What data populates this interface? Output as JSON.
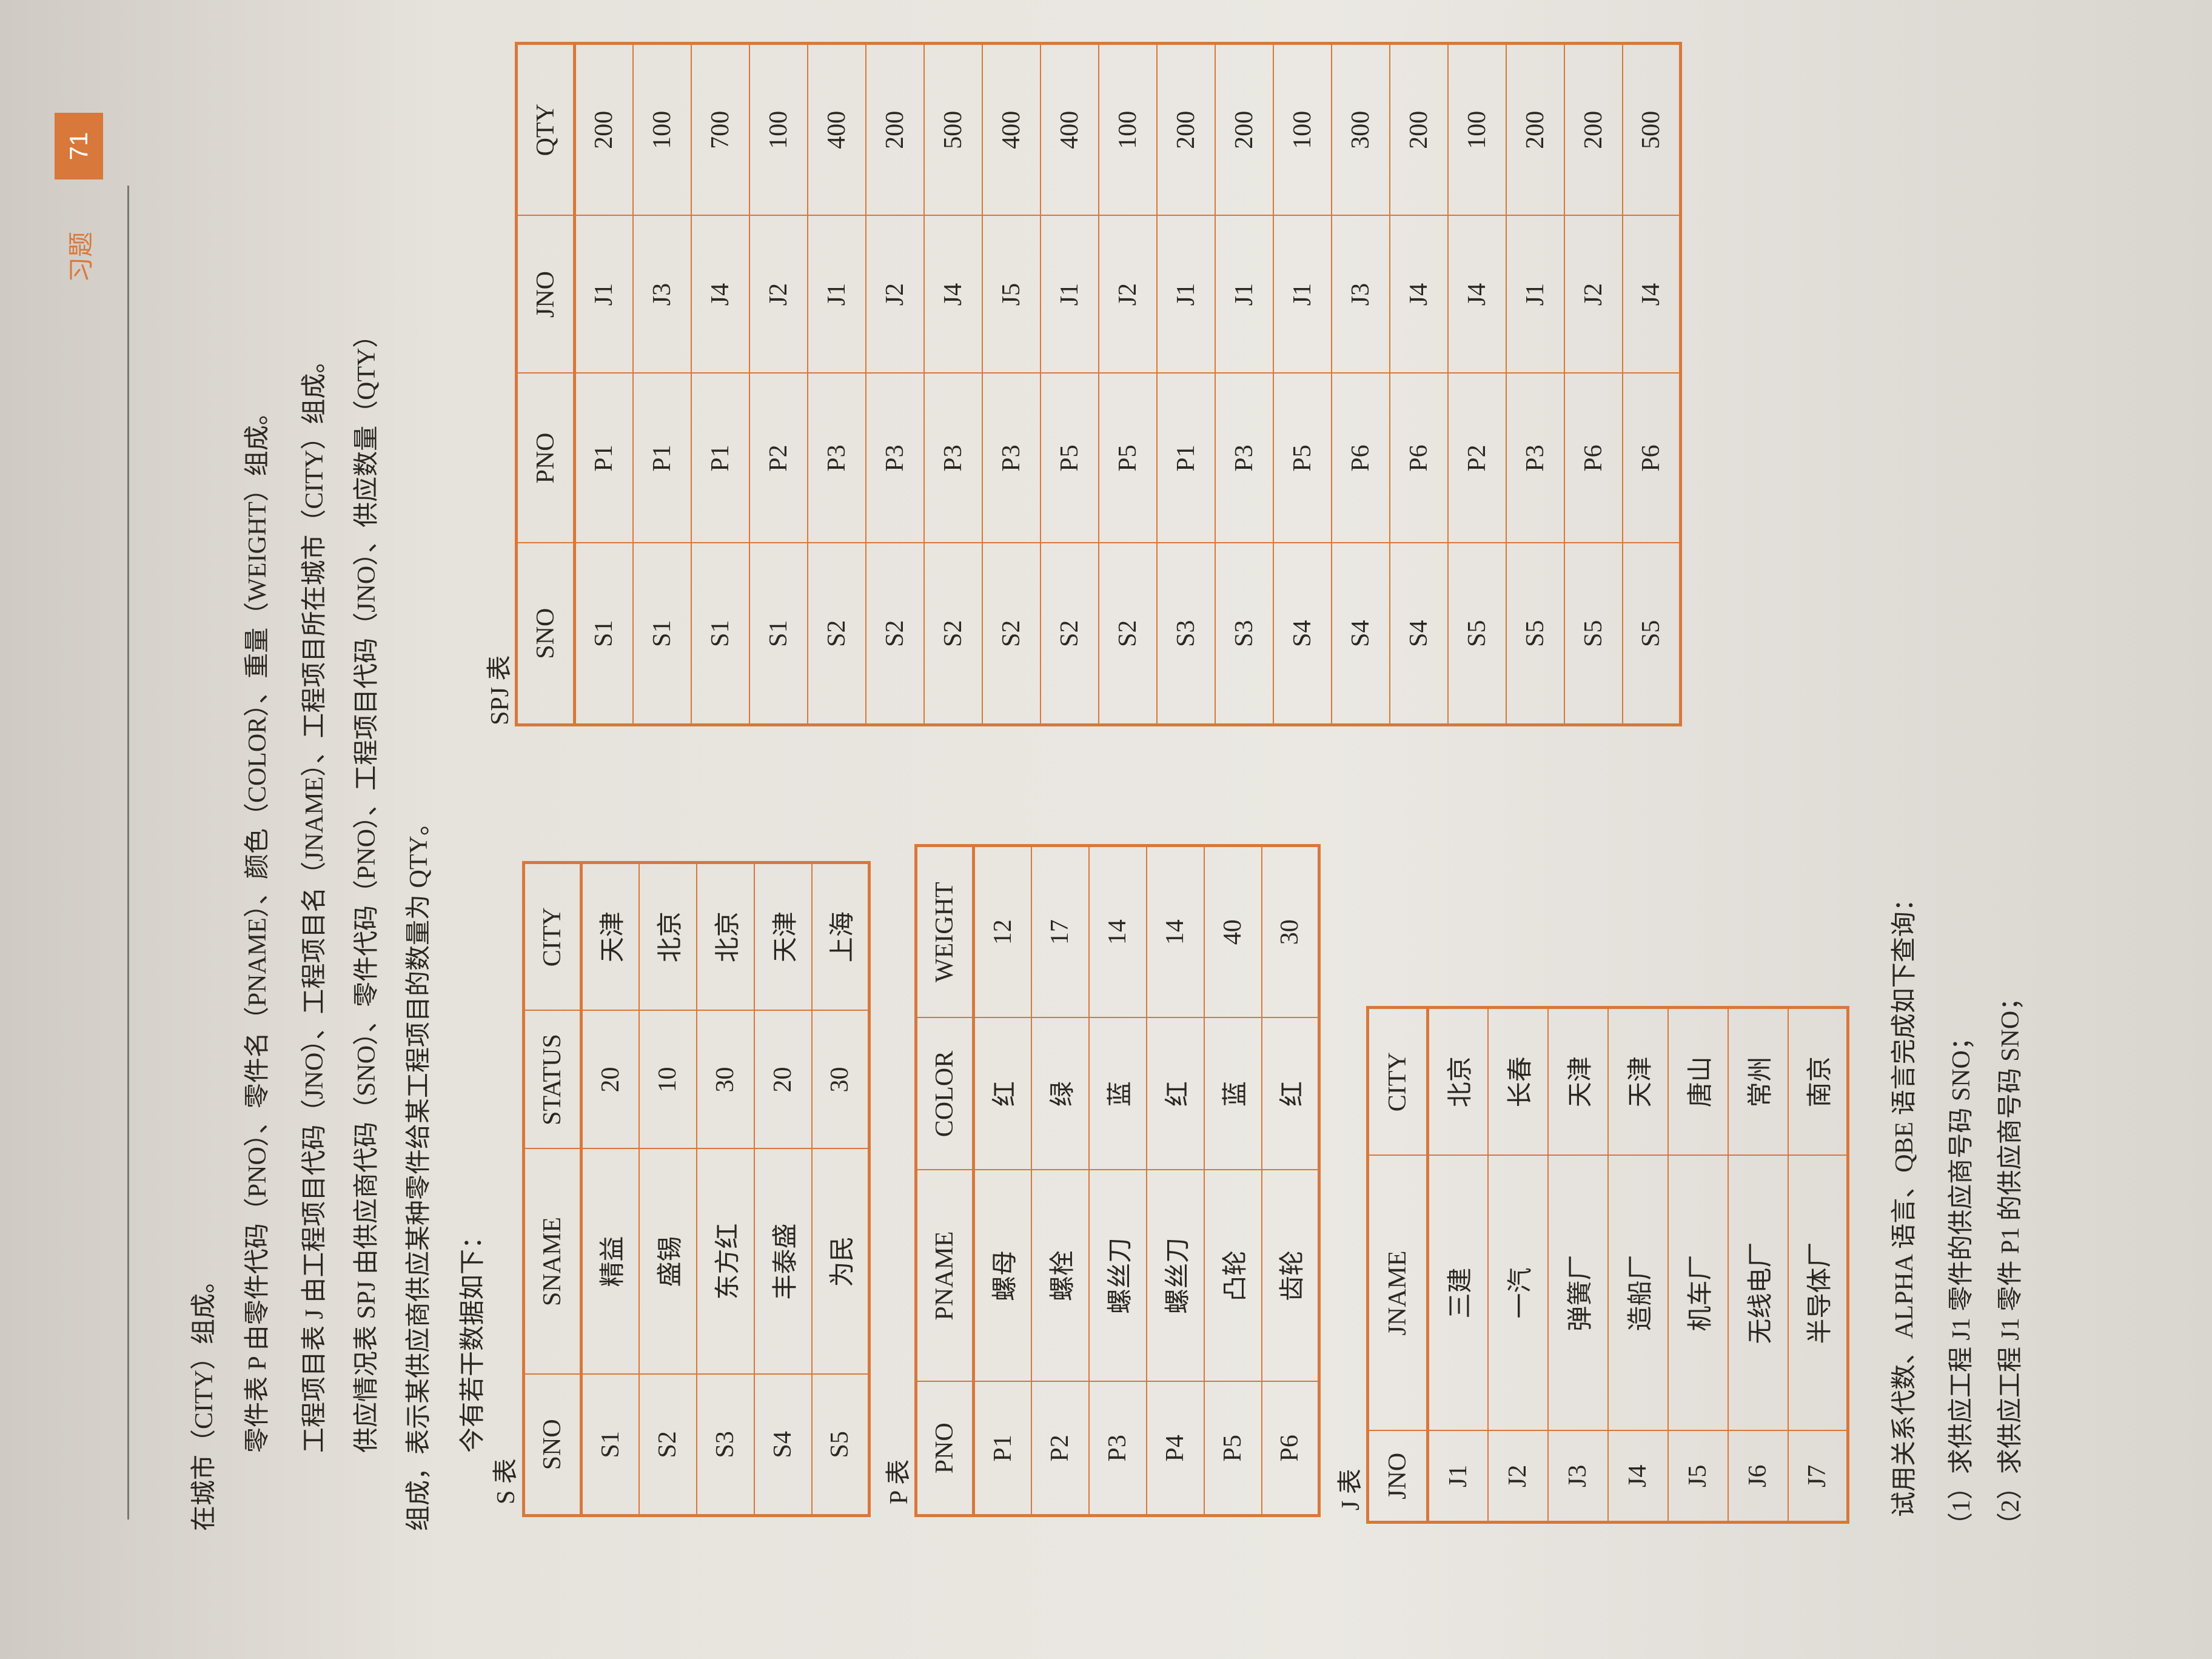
{
  "header": {
    "section": "习题",
    "page": "71"
  },
  "intro": [
    "在城市（CITY）组成。",
    "零件表 P 由零件代码（PNO）、零件名（PNAME）、颜色（COLOR）、重量（WEIGHT）组成。",
    "工程项目表 J 由工程项目代码（JNO）、工程项目名（JNAME）、工程项目所在城市（CITY）组成。",
    "供应情况表 SPJ 由供应商代码（SNO）、零件代码（PNO）、工程项目代码（JNO）、供应数量（QTY）",
    "组成，表示某供应商供应某种零件给某工程项目的数量为 QTY。",
    "今有若干数据如下："
  ],
  "tables": [
    {
      "label": "S 表",
      "columns": [
        "SNO",
        "SNAME",
        "STATUS",
        "CITY"
      ],
      "rows": [
        [
          "S1",
          "精益",
          "20",
          "天津"
        ],
        [
          "S2",
          "盛锡",
          "10",
          "北京"
        ],
        [
          "S3",
          "东方红",
          "30",
          "北京"
        ],
        [
          "S4",
          "丰泰盛",
          "20",
          "天津"
        ],
        [
          "S5",
          "为民",
          "30",
          "上海"
        ]
      ]
    },
    {
      "label": "P 表",
      "columns": [
        "PNO",
        "PNAME",
        "COLOR",
        "WEIGHT"
      ],
      "rows": [
        [
          "P1",
          "螺母",
          "红",
          "12"
        ],
        [
          "P2",
          "螺栓",
          "绿",
          "17"
        ],
        [
          "P3",
          "螺丝刀",
          "蓝",
          "14"
        ],
        [
          "P4",
          "螺丝刀",
          "红",
          "14"
        ],
        [
          "P5",
          "凸轮",
          "蓝",
          "40"
        ],
        [
          "P6",
          "齿轮",
          "红",
          "30"
        ]
      ]
    },
    {
      "label": "J 表",
      "columns": [
        "JNO",
        "JNAME",
        "CITY"
      ],
      "rows": [
        [
          "J1",
          "三建",
          "北京"
        ],
        [
          "J2",
          "一汽",
          "长春"
        ],
        [
          "J3",
          "弹簧厂",
          "天津"
        ],
        [
          "J4",
          "造船厂",
          "天津"
        ],
        [
          "J5",
          "机车厂",
          "唐山"
        ],
        [
          "J6",
          "无线电厂",
          "常州"
        ],
        [
          "J7",
          "半导体厂",
          "南京"
        ]
      ]
    },
    {
      "label": "SPJ 表",
      "columns": [
        "SNO",
        "PNO",
        "JNO",
        "QTY"
      ],
      "rows": [
        [
          "S1",
          "P1",
          "J1",
          "200"
        ],
        [
          "S1",
          "P1",
          "J3",
          "100"
        ],
        [
          "S1",
          "P1",
          "J4",
          "700"
        ],
        [
          "S1",
          "P2",
          "J2",
          "100"
        ],
        [
          "S2",
          "P3",
          "J1",
          "400"
        ],
        [
          "S2",
          "P3",
          "J2",
          "200"
        ],
        [
          "S2",
          "P3",
          "J4",
          "500"
        ],
        [
          "S2",
          "P3",
          "J5",
          "400"
        ],
        [
          "S2",
          "P5",
          "J1",
          "400"
        ],
        [
          "S2",
          "P5",
          "J2",
          "100"
        ],
        [
          "S3",
          "P1",
          "J1",
          "200"
        ],
        [
          "S3",
          "P3",
          "J1",
          "200"
        ],
        [
          "S4",
          "P5",
          "J1",
          "100"
        ],
        [
          "S4",
          "P6",
          "J3",
          "300"
        ],
        [
          "S4",
          "P6",
          "J4",
          "200"
        ],
        [
          "S5",
          "P2",
          "J4",
          "100"
        ],
        [
          "S5",
          "P3",
          "J1",
          "200"
        ],
        [
          "S5",
          "P6",
          "J2",
          "200"
        ],
        [
          "S5",
          "P6",
          "J4",
          "500"
        ]
      ]
    }
  ],
  "questions": {
    "prompt": "试用关系代数、ALPHA 语言、QBE 语言完成如下查询：",
    "items": [
      "（1）求供应工程 J1 零件的供应商号码 SNO；",
      "（2）求供应工程 J1 零件 P1 的供应商号码 SNO；"
    ]
  }
}
